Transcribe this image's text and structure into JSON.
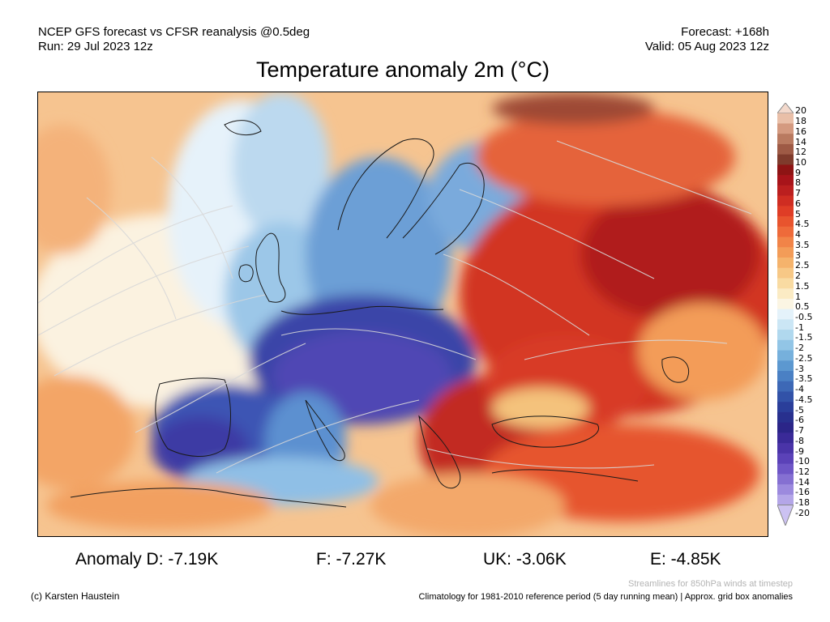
{
  "header": {
    "model_line": "NCEP GFS forecast vs CFSR reanalysis @0.5deg",
    "run_line": "Run: 29 Jul 2023 12z",
    "forecast_line": "Forecast: +168h",
    "valid_line": "Valid: 05 Aug 2023 12z"
  },
  "title": "Temperature anomaly 2m (°C)",
  "colorbar": {
    "labels": [
      "20",
      "18",
      "16",
      "14",
      "12",
      "10",
      "9",
      "8",
      "7",
      "6",
      "5",
      "4.5",
      "4",
      "3.5",
      "3",
      "2.5",
      "2",
      "1.5",
      "1",
      "0.5",
      "-0.5",
      "-1",
      "-1.5",
      "-2",
      "-2.5",
      "-3",
      "-3.5",
      "-4",
      "-4.5",
      "-5",
      "-6",
      "-7",
      "-8",
      "-9",
      "-10",
      "-12",
      "-14",
      "-16",
      "-18",
      "-20"
    ],
    "colors": [
      "#f3d9cc",
      "#e9bfa8",
      "#d49a80",
      "#b97a60",
      "#9e5a45",
      "#7f3b2c",
      "#8e1414",
      "#a8141a",
      "#bb1f1f",
      "#cf2d22",
      "#df3d26",
      "#e8542e",
      "#ee6a3a",
      "#f18448",
      "#f39c58",
      "#f5b36c",
      "#f7c886",
      "#f9dba2",
      "#fbebc4",
      "#fbf5e3",
      "#e4f2fa",
      "#cbe6f5",
      "#b0d8ee",
      "#92c5e6",
      "#76b0dc",
      "#5c98d0",
      "#4a80c4",
      "#3d68b6",
      "#3252a8",
      "#2a3e9a",
      "#28308e",
      "#2b2588",
      "#3a2a98",
      "#4a34a8",
      "#5b42b8",
      "#6e56c6",
      "#8570d2",
      "#9c8ade",
      "#b4a6e8",
      "#ccc2f2"
    ]
  },
  "anomalies": [
    {
      "text": "Anomaly D: -7.19K"
    },
    {
      "text": "F: -7.27K"
    },
    {
      "text": "UK: -3.06K"
    },
    {
      "text": "E: -4.85K"
    }
  ],
  "footer": {
    "credit": "(c) Karsten Haustein",
    "streamlines_note": "Streamlines for 850hPa winds at timestep",
    "climatology_note": "Climatology for 1981-2010 reference period (5 day running mean) | Approx. grid box anomalies"
  }
}
